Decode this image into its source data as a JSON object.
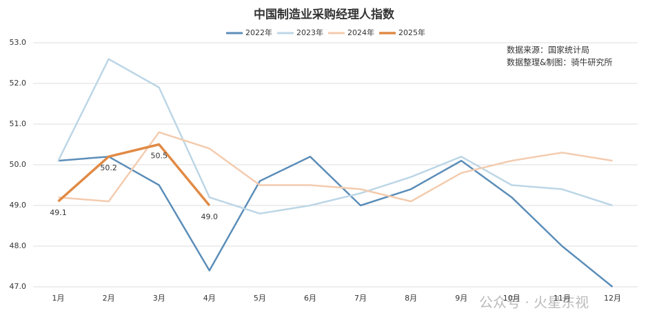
{
  "chart_data": {
    "type": "line",
    "title": "中国制造业采购经理人指数",
    "annotations": [
      "数据来源：国家统计局",
      "数据整理&制图：骑牛研究所"
    ],
    "watermark": "公众号 · 火星东视",
    "categories": [
      "1月",
      "2月",
      "3月",
      "4月",
      "5月",
      "6月",
      "7月",
      "8月",
      "9月",
      "10月",
      "11月",
      "12月"
    ],
    "series": [
      {
        "name": "2022年",
        "color": "#5b8db8",
        "values": [
          50.1,
          50.2,
          49.5,
          47.4,
          49.6,
          50.2,
          49.0,
          49.4,
          50.1,
          49.2,
          48.0,
          47.0
        ]
      },
      {
        "name": "2023年",
        "color": "#bcd6e6",
        "values": [
          50.1,
          52.6,
          51.9,
          49.2,
          48.8,
          49.0,
          49.3,
          49.7,
          50.2,
          49.5,
          49.4,
          49.0
        ]
      },
      {
        "name": "2024年",
        "color": "#f3cbae",
        "values": [
          49.2,
          49.1,
          50.8,
          50.4,
          49.5,
          49.5,
          49.4,
          49.1,
          49.8,
          50.1,
          50.3,
          50.1
        ]
      },
      {
        "name": "2025年",
        "color": "#e08a45",
        "values": [
          49.1,
          50.2,
          50.5,
          49.0,
          null,
          null,
          null,
          null,
          null,
          null,
          null,
          null
        ],
        "value_labels": [
          "49.1",
          "50.2",
          "50.5",
          "49.0",
          null,
          null,
          null,
          null,
          null,
          null,
          null,
          null
        ]
      }
    ],
    "ylim": [
      47,
      53
    ],
    "yticks": [
      {
        "value": 47,
        "label": "47.0"
      },
      {
        "value": 48,
        "label": "48.0"
      },
      {
        "value": 49,
        "label": "49.0"
      },
      {
        "value": 50,
        "label": "50.0"
      },
      {
        "value": 51,
        "label": "51.0"
      },
      {
        "value": 52,
        "label": "52.0"
      },
      {
        "value": 53,
        "label": "53.0"
      }
    ],
    "grid": true
  }
}
